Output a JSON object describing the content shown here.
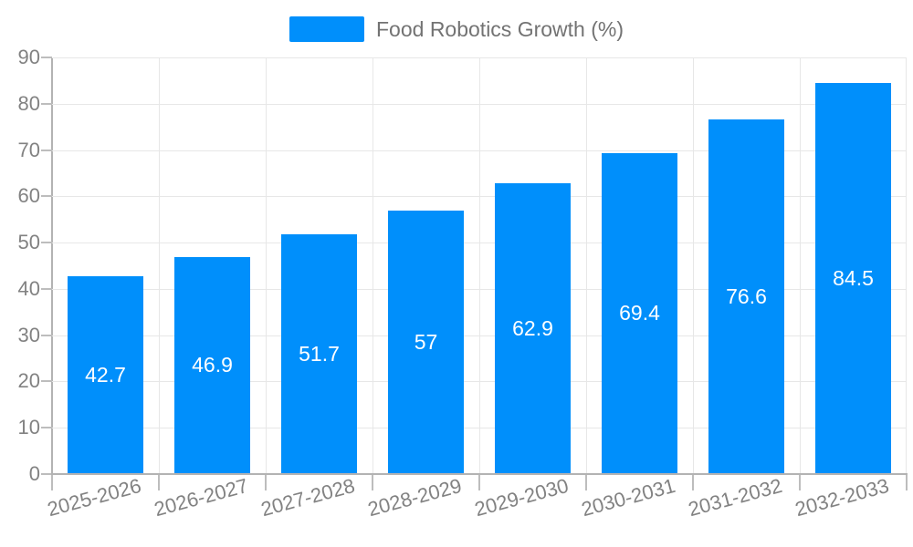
{
  "chart_data": {
    "type": "bar",
    "title": "",
    "legend_entries": [
      "Food Robotics Growth (%)"
    ],
    "legend_position": "top-center",
    "categories": [
      "2025-2026",
      "2026-2027",
      "2027-2028",
      "2028-2029",
      "2029-2030",
      "2030-2031",
      "2031-2032",
      "2032-2033"
    ],
    "values": [
      42.7,
      46.9,
      51.7,
      57,
      62.9,
      69.4,
      76.6,
      84.5
    ],
    "value_labels": [
      "42.7",
      "46.9",
      "51.7",
      "57",
      "62.9",
      "69.4",
      "76.6",
      "84.5"
    ],
    "xlabel": "",
    "ylabel": "",
    "ylim": [
      0,
      90
    ],
    "yticks": [
      0,
      10,
      20,
      30,
      40,
      50,
      60,
      70,
      80,
      90
    ],
    "grid": true,
    "x_label_rotation_deg": -15,
    "colors": {
      "bar": "#008FFB",
      "value_label": "#FFFFFF",
      "axis_text": "#828282",
      "legend_text": "#737373",
      "grid_line": "#E7E7E7",
      "axis_line": "#B3B3B3",
      "background": "#FFFFFF"
    }
  }
}
